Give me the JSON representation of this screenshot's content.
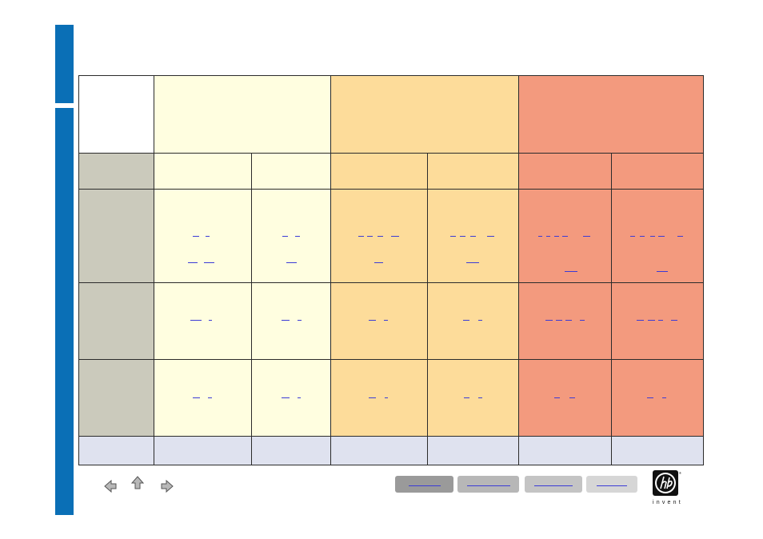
{
  "colors": {
    "sidebar": "#0a6fb6",
    "tier1": "#fffee0",
    "tier2": "#fddc9a",
    "tier3": "#f39a7e",
    "row_header": "#cbcabc",
    "footer_row": "#dfe2ef",
    "link": "#3b3bd6"
  },
  "icons": {
    "back": "arrow-left-icon",
    "up": "arrow-up-icon",
    "forward": "arrow-right-icon",
    "logo": "hp-invent-logo"
  },
  "logo": {
    "mark": "hp",
    "tagline": "invent"
  },
  "nav_buttons": [
    "button-1",
    "button-2",
    "button-3",
    "button-4"
  ]
}
